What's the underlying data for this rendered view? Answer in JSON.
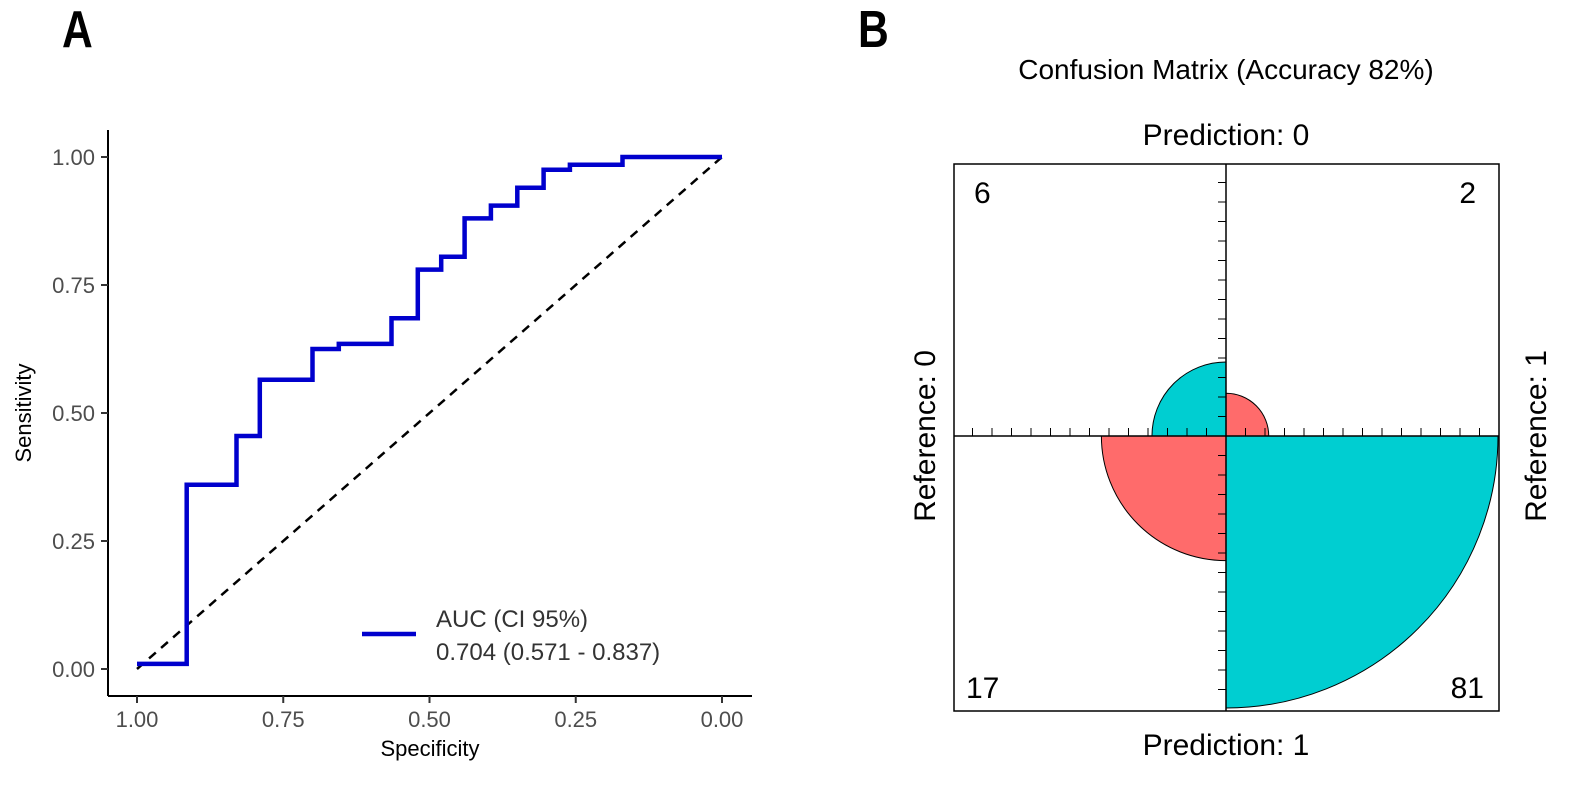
{
  "panels": {
    "a": "A",
    "b": "B"
  },
  "chart_data": [
    {
      "type": "line",
      "xlabel": "Specificity",
      "ylabel": "Sensitivity",
      "xlim": [
        1.0,
        0.0
      ],
      "ylim": [
        0.0,
        1.0
      ],
      "x_ticks": [
        "1.00",
        "0.75",
        "0.50",
        "0.25",
        "0.00"
      ],
      "x_tick_values": [
        1.0,
        0.75,
        0.5,
        0.25,
        0.0
      ],
      "y_ticks": [
        "0.00",
        "0.25",
        "0.50",
        "0.75",
        "1.00"
      ],
      "y_tick_values": [
        0.0,
        0.25,
        0.5,
        0.75,
        1.0
      ],
      "colors": {
        "roc": "#0000CD",
        "reference": "#000000"
      },
      "legend": {
        "title": "AUC (CI 95%)",
        "entry": "0.704 (0.571 - 0.837)",
        "position": "bottom-right"
      },
      "series": [
        {
          "name": "ROC curve",
          "specificity": [
            1.0,
            0.915,
            0.915,
            0.83,
            0.83,
            0.79,
            0.79,
            0.7,
            0.7,
            0.655,
            0.655,
            0.565,
            0.565,
            0.52,
            0.52,
            0.48,
            0.48,
            0.44,
            0.44,
            0.395,
            0.395,
            0.35,
            0.35,
            0.305,
            0.305,
            0.26,
            0.26,
            0.17,
            0.17,
            0.0
          ],
          "sensitivity": [
            0.01,
            0.01,
            0.36,
            0.36,
            0.455,
            0.455,
            0.565,
            0.565,
            0.625,
            0.625,
            0.635,
            0.635,
            0.685,
            0.685,
            0.78,
            0.78,
            0.805,
            0.805,
            0.88,
            0.88,
            0.905,
            0.905,
            0.94,
            0.94,
            0.975,
            0.975,
            0.985,
            0.985,
            1.0,
            1.0
          ]
        },
        {
          "name": "Chance line",
          "specificity": [
            1.0,
            0.0
          ],
          "sensitivity": [
            0.0,
            1.0
          ]
        }
      ]
    },
    {
      "type": "fourfold",
      "title": "Confusion Matrix (Accuracy 82%)",
      "top_label": "Prediction: 0",
      "bottom_label": "Prediction: 1",
      "left_label": "Reference: 0",
      "right_label": "Reference: 1",
      "counts": {
        "top_left": "6",
        "top_right": "2",
        "bottom_left": "17",
        "bottom_right": "81"
      },
      "cells": [
        {
          "position": "top-left",
          "count": 6,
          "fill": "#00CED1"
        },
        {
          "position": "top-right",
          "count": 2,
          "fill": "#FF6B6B"
        },
        {
          "position": "bottom-left",
          "count": 17,
          "fill": "#FF6B6B"
        },
        {
          "position": "bottom-right",
          "count": 81,
          "fill": "#00CED1"
        }
      ]
    }
  ]
}
